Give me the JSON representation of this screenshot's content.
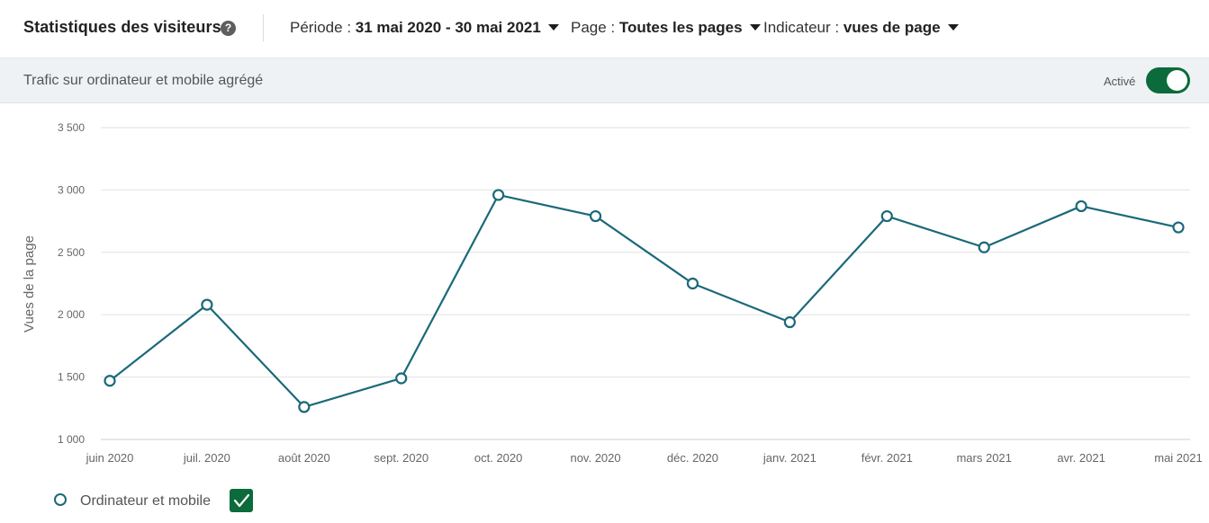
{
  "header": {
    "title": "Statistiques des visiteurs",
    "help_icon": "help-icon",
    "period_label": "Période : ",
    "period_value": "31 mai 2020 - 30 mai 2021",
    "page_label": "Page : ",
    "page_value": "Toutes les pages",
    "indicator_label": "Indicateur : ",
    "indicator_value": "vues de page"
  },
  "band": {
    "label": "Trafic sur ordinateur et mobile agrégé",
    "toggle_label": "Activé",
    "toggle_on": true
  },
  "colors": {
    "series": "#1a6979",
    "toggle": "#0b6b3a",
    "grid": "#e2e2e2"
  },
  "legend": {
    "series_label": "Ordinateur et mobile",
    "checked": true
  },
  "chart_data": {
    "type": "line",
    "ylabel": "Vues de la page",
    "xlabel": "",
    "ylim": [
      1000,
      3500
    ],
    "yticks": [
      1000,
      1500,
      2000,
      2500,
      3000,
      3500
    ],
    "ytick_labels": [
      "1 000",
      "1 500",
      "2 000",
      "2 500",
      "3 000",
      "3 500"
    ],
    "categories": [
      "juin 2020",
      "juil. 2020",
      "août 2020",
      "sept. 2020",
      "oct. 2020",
      "nov. 2020",
      "déc. 2020",
      "janv. 2021",
      "févr. 2021",
      "mars 2021",
      "avr. 2021",
      "mai 2021"
    ],
    "series": [
      {
        "name": "Ordinateur et mobile",
        "values": [
          1470,
          2080,
          1260,
          1490,
          2960,
          2790,
          2250,
          1940,
          2790,
          2540,
          2870,
          2700
        ]
      }
    ],
    "grid": true,
    "legend_position": "bottom-left"
  }
}
